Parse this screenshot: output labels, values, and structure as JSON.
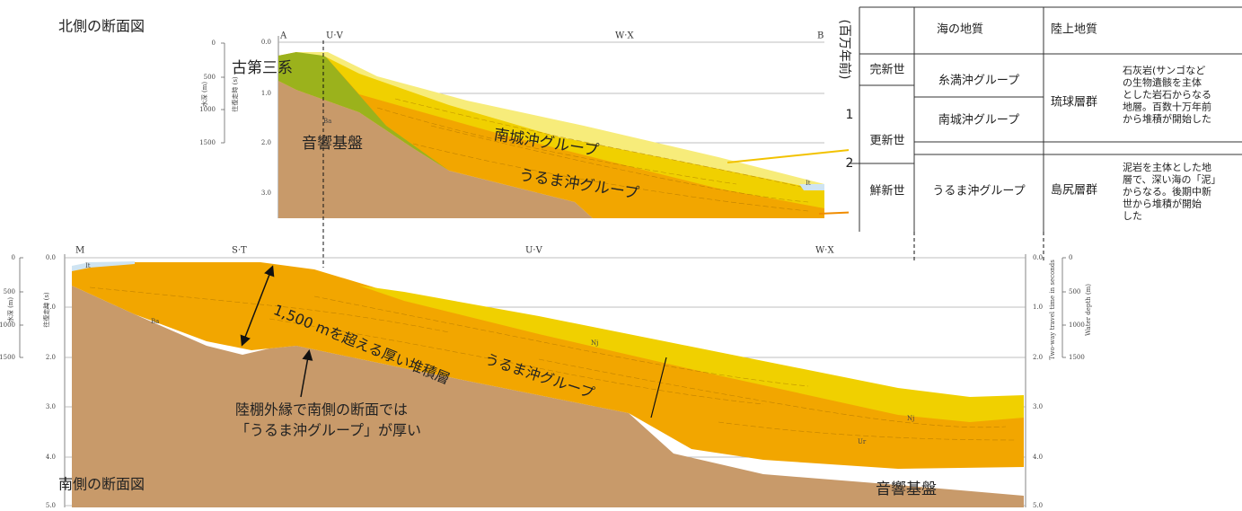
{
  "north": {
    "title": "北側の断面図",
    "stations": [
      "A",
      "U·V",
      "W·X",
      "B"
    ],
    "depth_axis": {
      "label": "水深 (m)",
      "ticks": [
        "0",
        "500",
        "1000",
        "1500"
      ]
    },
    "time_axis": {
      "label": "往復走時 (s)",
      "ticks": [
        "0.0",
        "1.0",
        "2.0",
        "3.0"
      ]
    },
    "units": {
      "paleogene": "古第三系",
      "basement": "音響基盤",
      "nanjo": "南城沖グループ",
      "uruma": "うるま沖グループ",
      "ba": "Ba",
      "it": "It"
    }
  },
  "south": {
    "title": "南側の断面図",
    "stations": [
      "M",
      "S·T",
      "U·V",
      "W·X"
    ],
    "depth_axis": {
      "label": "水深 (m)",
      "ticks": [
        "0",
        "500",
        "1000",
        "1500"
      ]
    },
    "time_axis": {
      "label": "往復走時 (s)",
      "ticks": [
        "0.0",
        "1.0",
        "2.0",
        "3.0",
        "4.0",
        "5.0"
      ]
    },
    "right_time_axis": {
      "label": "Two-way travel time in seconds",
      "ticks": [
        "0.0",
        "1.0",
        "2.0",
        "3.0",
        "4.0",
        "5.0"
      ]
    },
    "right_depth_axis": {
      "label": "Water depth (m)",
      "ticks": [
        "0",
        "500",
        "1000",
        "1500"
      ]
    },
    "units": {
      "it": "It",
      "ba": "Ba",
      "nj": "Nj",
      "ur": "Ur",
      "uruma": "うるま沖グループ",
      "basement": "音響基盤"
    },
    "annotations": {
      "thickness": "1,500 mを超える厚い堆積層",
      "note": [
        "陸棚外縁で南側の断面では",
        "「うるま沖グループ」が厚い"
      ]
    }
  },
  "table": {
    "axis_label": "(百万年前)",
    "axis_ticks": [
      "1",
      "2"
    ],
    "header": [
      "海の地質",
      "陸上地質"
    ],
    "epochs": [
      "完新世",
      "更新世",
      "鮮新世"
    ],
    "marine": [
      "糸満沖グループ",
      "南城沖グループ",
      "うるま沖グループ"
    ],
    "land": [
      {
        "name": "琉球層群",
        "description": [
          "石灰岩(サンゴなど",
          "の生物遺骸を主体",
          "とした岩石からなる",
          "地層。百数十万年前",
          "から堆積が開始した"
        ]
      },
      {
        "name": "島尻層群",
        "description": [
          "泥岩を主体とした地",
          "層で、深い海の「泥」",
          "からなる。後期中新",
          "世から堆積が開始",
          "した"
        ]
      }
    ]
  }
}
